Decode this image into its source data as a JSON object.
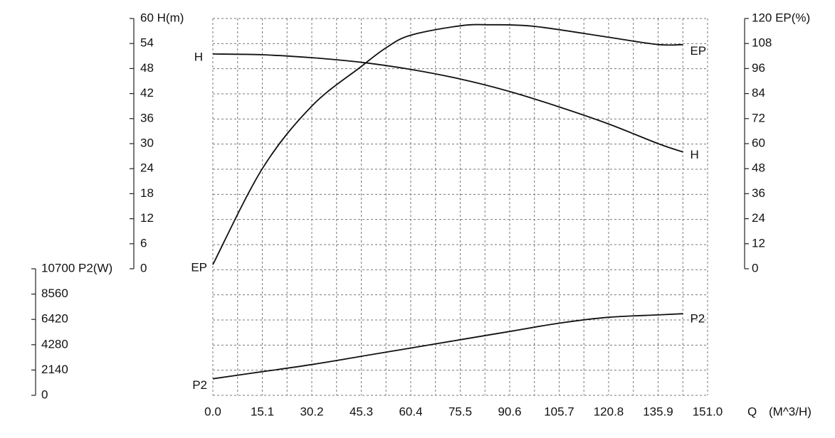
{
  "chart_data": {
    "type": "line",
    "title": "",
    "x": {
      "label": "Q",
      "unit_label": "(M^3/H)",
      "ticks": [
        "0.0",
        "15.1",
        "30.2",
        "45.3",
        "60.4",
        "75.5",
        "90.6",
        "105.7",
        "120.8",
        "135.9",
        "151.0"
      ],
      "range": [
        0,
        151.0
      ]
    },
    "axes": {
      "head": {
        "label": "H(m)",
        "top_label": "60 H(m)",
        "ticks": [
          "0",
          "6",
          "12",
          "18",
          "24",
          "30",
          "36",
          "42",
          "48",
          "54",
          "60"
        ],
        "range": [
          0,
          60
        ]
      },
      "efficiency": {
        "label": "EP(%)",
        "top_label": "120 EP(%)",
        "ticks": [
          "0",
          "12",
          "24",
          "36",
          "48",
          "60",
          "72",
          "84",
          "96",
          "108",
          "120"
        ],
        "range": [
          0,
          120
        ]
      },
      "power": {
        "label": "P2(W)",
        "top_label": "10700 P2(W)",
        "ticks": [
          "0",
          "2140",
          "4280",
          "6420",
          "8560",
          "10700"
        ],
        "range": [
          0,
          10700
        ]
      }
    },
    "series": [
      {
        "name": "H",
        "axis": "head",
        "start_label": "H",
        "end_label": "H",
        "points": [
          [
            0,
            51.5
          ],
          [
            15.1,
            51.3
          ],
          [
            30.2,
            50.6
          ],
          [
            45.3,
            49.5
          ],
          [
            60.4,
            47.8
          ],
          [
            75.5,
            45.5
          ],
          [
            90.6,
            42.5
          ],
          [
            105.7,
            38.8
          ],
          [
            120.8,
            34.7
          ],
          [
            135.9,
            30.0
          ],
          [
            143.5,
            28.0
          ]
        ]
      },
      {
        "name": "EP",
        "axis": "efficiency",
        "start_label": "EP",
        "end_label": "EP",
        "points": [
          [
            0,
            2
          ],
          [
            15.1,
            48
          ],
          [
            30.2,
            78
          ],
          [
            45.3,
            97
          ],
          [
            52.9,
            106
          ],
          [
            60.4,
            112
          ],
          [
            75.5,
            116.5
          ],
          [
            84.6,
            117
          ],
          [
            98.2,
            116.2
          ],
          [
            120.8,
            111
          ],
          [
            135.9,
            107.5
          ],
          [
            143.5,
            107.5
          ]
        ]
      },
      {
        "name": "P2",
        "axis": "power",
        "start_label": "P2",
        "end_label": "P2",
        "points": [
          [
            0,
            1400
          ],
          [
            15.1,
            2000
          ],
          [
            30.2,
            2600
          ],
          [
            45.3,
            3300
          ],
          [
            60.4,
            4000
          ],
          [
            75.5,
            4700
          ],
          [
            90.6,
            5400
          ],
          [
            105.7,
            6100
          ],
          [
            120.8,
            6600
          ],
          [
            135.9,
            6800
          ],
          [
            143.5,
            6900
          ]
        ]
      }
    ],
    "grid": true
  }
}
